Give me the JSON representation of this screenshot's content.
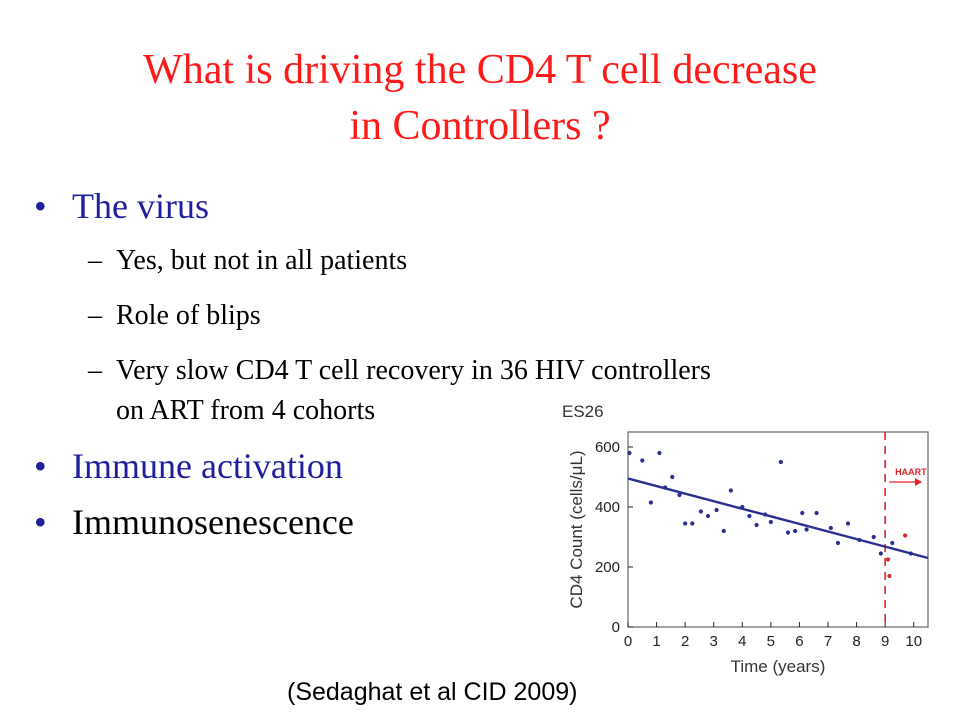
{
  "slide": {
    "title_line1": "What is driving the CD4 T cell decrease",
    "title_line2": "in Controllers ?",
    "bullet_symbol": "•",
    "dash_symbol": "–",
    "bullets": [
      {
        "text": "The virus",
        "color": "#1f1f9e",
        "subitems": [
          "Yes, but not in all patients",
          "Role of blips",
          "Very slow CD4 T cell recovery in 36 HIV controllers",
          "on ART from 4 cohorts"
        ]
      },
      {
        "text": "Immune activation",
        "color": "#1f1f9e"
      },
      {
        "text": "Immunosenescence",
        "color": "#000000"
      }
    ],
    "citation": "(Sedaghat et al CID 2009)",
    "title_color": "#ff1a1a"
  },
  "chart_data": {
    "type": "scatter",
    "title": "ES26",
    "xlabel": "Time (years)",
    "ylabel": "CD4 Count (cells/μL)",
    "xlim": [
      0,
      10.5
    ],
    "ylim": [
      0,
      650
    ],
    "xticks": [
      0,
      1,
      2,
      3,
      4,
      5,
      6,
      7,
      8,
      9,
      10
    ],
    "yticks": [
      0,
      200,
      400,
      600
    ],
    "points": [
      {
        "x": 0.05,
        "y": 580
      },
      {
        "x": 0.5,
        "y": 555
      },
      {
        "x": 0.8,
        "y": 415
      },
      {
        "x": 1.1,
        "y": 580
      },
      {
        "x": 1.3,
        "y": 465
      },
      {
        "x": 1.55,
        "y": 500
      },
      {
        "x": 1.8,
        "y": 440
      },
      {
        "x": 2.0,
        "y": 345
      },
      {
        "x": 2.25,
        "y": 345
      },
      {
        "x": 2.55,
        "y": 385
      },
      {
        "x": 2.8,
        "y": 370
      },
      {
        "x": 3.1,
        "y": 390
      },
      {
        "x": 3.35,
        "y": 320
      },
      {
        "x": 3.6,
        "y": 455
      },
      {
        "x": 4.0,
        "y": 400
      },
      {
        "x": 4.25,
        "y": 370
      },
      {
        "x": 4.5,
        "y": 340
      },
      {
        "x": 4.8,
        "y": 375
      },
      {
        "x": 5.0,
        "y": 350
      },
      {
        "x": 5.35,
        "y": 550
      },
      {
        "x": 5.6,
        "y": 315
      },
      {
        "x": 5.85,
        "y": 320
      },
      {
        "x": 6.1,
        "y": 380
      },
      {
        "x": 6.25,
        "y": 325
      },
      {
        "x": 6.6,
        "y": 380
      },
      {
        "x": 7.1,
        "y": 330
      },
      {
        "x": 7.35,
        "y": 280
      },
      {
        "x": 7.7,
        "y": 345
      },
      {
        "x": 8.1,
        "y": 290
      },
      {
        "x": 8.6,
        "y": 300
      },
      {
        "x": 8.85,
        "y": 245
      },
      {
        "x": 9.25,
        "y": 280
      },
      {
        "x": 9.9,
        "y": 245
      }
    ],
    "post_haart_points": [
      {
        "x": 9.1,
        "y": 225
      },
      {
        "x": 9.15,
        "y": 170
      },
      {
        "x": 9.7,
        "y": 305
      }
    ],
    "trend_line": {
      "x": [
        0,
        10.5
      ],
      "y": [
        495,
        230
      ]
    },
    "haart_line_x": 9,
    "annotation": "HAART",
    "colors": {
      "points": "#2a2f8f",
      "trend": "#2a2f8f",
      "haart": "#e0252a",
      "frame": "#666666",
      "ticks": "#222222"
    }
  }
}
